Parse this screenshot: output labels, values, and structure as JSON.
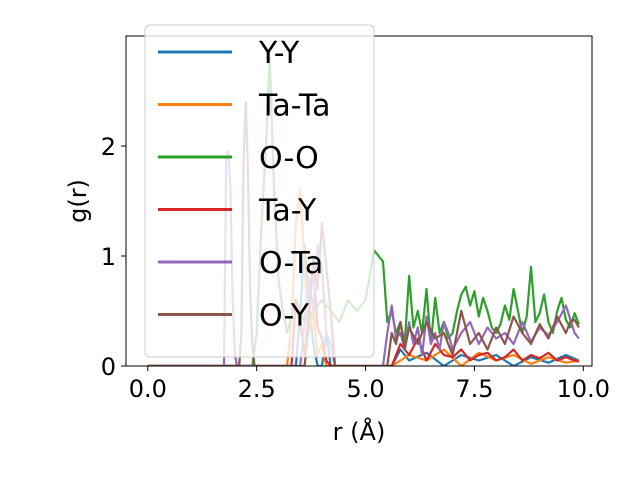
{
  "chart_data": {
    "type": "line",
    "xlabel": "r (Å)",
    "ylabel": "g(r)",
    "xlim": [
      -0.5,
      10.2
    ],
    "ylim": [
      0,
      3.0
    ],
    "xticks": [
      0.0,
      2.5,
      5.0,
      7.5,
      10.0
    ],
    "xtick_labels": [
      "0.0",
      "2.5",
      "5.0",
      "7.5",
      "10.0"
    ],
    "yticks": [
      0,
      1,
      2
    ],
    "ytick_labels": [
      "0",
      "1",
      "2"
    ],
    "grid": false,
    "legend_position": "upper-left",
    "colors": {
      "Y-Y": "#1f77b4",
      "Ta-Ta": "#ff7f0e",
      "O-O": "#2ca02c",
      "Ta-Y": "#d62728",
      "O-Ta": "#9467bd",
      "O-Y": "#8c564b"
    },
    "series": [
      {
        "name": "Y-Y",
        "x": [
          0.0,
          3.4,
          3.5,
          3.6,
          3.7,
          3.8,
          3.9,
          4.0,
          4.1,
          4.2,
          5.6,
          5.8,
          6.0,
          6.4,
          6.8,
          7.2,
          7.6,
          8.0,
          8.4,
          8.8,
          9.2,
          9.6,
          9.9
        ],
        "y": [
          0.0,
          0.0,
          0.5,
          1.1,
          0.6,
          0.2,
          0.0,
          0.0,
          0.3,
          0.0,
          0.0,
          0.15,
          0.05,
          0.12,
          0.0,
          0.1,
          0.05,
          0.1,
          0.0,
          0.08,
          0.03,
          0.1,
          0.05
        ]
      },
      {
        "name": "Ta-Ta",
        "x": [
          0.0,
          3.2,
          3.3,
          3.4,
          3.5,
          3.6,
          3.7,
          3.8,
          3.9,
          4.0,
          4.1,
          5.6,
          6.0,
          6.4,
          6.8,
          7.2,
          7.6,
          8.0,
          8.4,
          8.8,
          9.2,
          9.6,
          9.9
        ],
        "y": [
          0.0,
          0.0,
          0.4,
          1.3,
          1.6,
          0.9,
          0.3,
          0.5,
          0.1,
          0.2,
          0.0,
          0.0,
          0.1,
          0.05,
          0.15,
          0.0,
          0.12,
          0.05,
          0.1,
          0.02,
          0.08,
          0.03,
          0.05
        ]
      },
      {
        "name": "O-O",
        "x": [
          0.0,
          2.4,
          2.5,
          2.6,
          2.7,
          2.8,
          2.9,
          3.0,
          3.1,
          3.2,
          3.4,
          3.6,
          3.8,
          4.0,
          4.2,
          4.4,
          4.6,
          4.8,
          5.0,
          5.2,
          5.3,
          5.4,
          5.5,
          5.6,
          5.7,
          5.8,
          5.9,
          6.0,
          6.1,
          6.2,
          6.3,
          6.4,
          6.5,
          6.6,
          6.7,
          6.8,
          6.9,
          7.0,
          7.1,
          7.2,
          7.3,
          7.4,
          7.5,
          7.6,
          7.7,
          7.8,
          7.9,
          8.0,
          8.1,
          8.2,
          8.3,
          8.4,
          8.5,
          8.6,
          8.7,
          8.8,
          8.9,
          9.0,
          9.1,
          9.2,
          9.3,
          9.4,
          9.5,
          9.6,
          9.7,
          9.8,
          9.9
        ],
        "y": [
          0.0,
          0.0,
          0.3,
          1.2,
          1.9,
          2.8,
          1.6,
          0.8,
          0.5,
          0.3,
          0.6,
          0.4,
          0.5,
          0.6,
          0.5,
          0.4,
          0.6,
          0.5,
          0.6,
          1.05,
          1.0,
          0.95,
          0.4,
          0.5,
          0.3,
          0.4,
          0.2,
          0.82,
          0.35,
          0.5,
          0.3,
          0.7,
          0.2,
          0.62,
          0.3,
          0.4,
          0.25,
          0.3,
          0.5,
          0.65,
          0.72,
          0.55,
          0.68,
          0.45,
          0.62,
          0.5,
          0.35,
          0.3,
          0.38,
          0.55,
          0.42,
          0.7,
          0.5,
          0.3,
          0.45,
          0.9,
          0.4,
          0.48,
          0.65,
          0.4,
          0.3,
          0.5,
          0.62,
          0.42,
          0.35,
          0.48,
          0.38
        ]
      },
      {
        "name": "Ta-Y",
        "x": [
          0.0,
          3.3,
          3.4,
          3.5,
          3.6,
          3.7,
          3.8,
          3.9,
          4.0,
          4.1,
          4.2,
          5.6,
          5.8,
          6.0,
          6.2,
          6.4,
          6.6,
          6.8,
          7.0,
          7.2,
          7.4,
          7.6,
          7.8,
          8.0,
          8.2,
          8.4,
          8.6,
          8.8,
          9.0,
          9.2,
          9.4,
          9.6,
          9.8,
          9.9
        ],
        "y": [
          0.0,
          0.0,
          0.6,
          0.4,
          0.1,
          0.5,
          0.9,
          0.35,
          0.25,
          0.05,
          0.0,
          0.0,
          0.2,
          0.1,
          0.25,
          0.05,
          0.2,
          0.1,
          0.08,
          0.15,
          0.05,
          0.1,
          0.12,
          0.05,
          0.08,
          0.15,
          0.05,
          0.1,
          0.07,
          0.12,
          0.05,
          0.08,
          0.05,
          0.04
        ]
      },
      {
        "name": "O-Ta",
        "x": [
          0.0,
          1.75,
          1.8,
          1.85,
          1.9,
          1.95,
          2.0,
          2.05,
          2.1,
          3.5,
          3.6,
          3.7,
          3.8,
          3.9,
          4.0,
          4.1,
          4.2,
          4.3,
          5.4,
          5.5,
          5.6,
          5.7,
          5.8,
          5.9,
          6.0,
          6.1,
          6.2,
          6.3,
          6.4,
          6.5,
          6.6,
          6.7,
          6.8,
          6.9,
          7.0,
          7.2,
          7.4,
          7.6,
          7.8,
          8.0,
          8.2,
          8.4,
          8.6,
          8.8,
          9.0,
          9.2,
          9.4,
          9.6,
          9.8,
          9.9
        ],
        "y": [
          0.0,
          0.0,
          1.9,
          1.95,
          1.6,
          0.6,
          0.1,
          0.0,
          0.0,
          0.0,
          0.4,
          0.8,
          0.5,
          1.1,
          0.9,
          0.3,
          0.2,
          0.0,
          0.0,
          0.3,
          0.55,
          0.25,
          0.3,
          0.15,
          0.4,
          0.2,
          0.35,
          0.1,
          0.45,
          0.2,
          0.3,
          0.15,
          0.4,
          0.3,
          0.15,
          0.3,
          0.4,
          0.2,
          0.35,
          0.25,
          0.3,
          0.2,
          0.4,
          0.22,
          0.35,
          0.28,
          0.4,
          0.55,
          0.3,
          0.25
        ]
      },
      {
        "name": "O-Y",
        "x": [
          0.0,
          2.1,
          2.15,
          2.2,
          2.25,
          2.3,
          2.35,
          2.4,
          2.45,
          3.6,
          3.7,
          3.8,
          3.9,
          4.0,
          4.1,
          4.2,
          4.3,
          5.5,
          5.6,
          5.7,
          5.8,
          5.9,
          6.0,
          6.2,
          6.4,
          6.6,
          6.8,
          7.0,
          7.2,
          7.4,
          7.6,
          7.8,
          8.0,
          8.2,
          8.4,
          8.6,
          8.8,
          9.0,
          9.2,
          9.4,
          9.6,
          9.7,
          9.8,
          9.9
        ],
        "y": [
          0.0,
          0.0,
          0.3,
          1.9,
          2.4,
          1.8,
          0.7,
          0.2,
          0.0,
          0.0,
          0.4,
          1.0,
          0.7,
          1.3,
          0.9,
          0.5,
          0.0,
          0.0,
          0.3,
          0.2,
          0.4,
          0.15,
          0.35,
          0.2,
          0.4,
          0.25,
          0.3,
          0.1,
          0.5,
          0.2,
          0.3,
          0.15,
          0.35,
          0.2,
          0.45,
          0.3,
          0.2,
          0.38,
          0.25,
          0.45,
          0.3,
          0.4,
          0.42,
          0.35
        ]
      }
    ]
  }
}
